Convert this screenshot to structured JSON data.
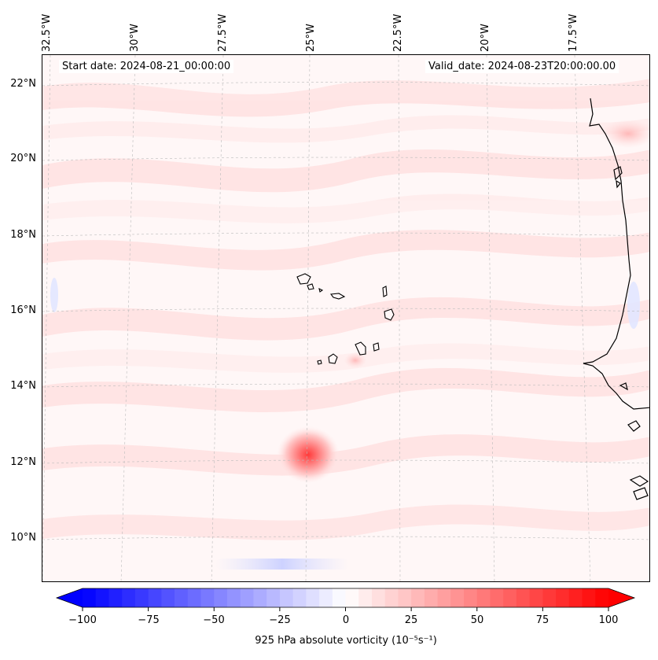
{
  "header": {
    "start_date": "Start date: 2024-08-21_00:00:00",
    "valid_date": "Valid_date: 2024-08-23T20:00:00.00"
  },
  "longitude_labels": [
    "32.5°W",
    "30°W",
    "27.5°W",
    "25°W",
    "22.5°W",
    "20°W",
    "17.5°W"
  ],
  "latitude_labels": [
    "22°N",
    "20°N",
    "18°N",
    "16°N",
    "14°N",
    "12°N",
    "10°N"
  ],
  "colorbar": {
    "ticks": [
      "−100",
      "−75",
      "−50",
      "−25",
      "0",
      "25",
      "50",
      "75",
      "100"
    ],
    "min": -100,
    "max": 100,
    "levels": 40,
    "label": "925 hPa absolute vorticity (10⁻⁵s⁻¹)",
    "negative_color": "#0000ff",
    "positive_color": "#ff0000"
  },
  "colors": {
    "background_tint": "#fff7f7",
    "band_pink": "#ffe2e2",
    "vortex_core": "#ff3c3c",
    "coastline": "#000000"
  }
}
